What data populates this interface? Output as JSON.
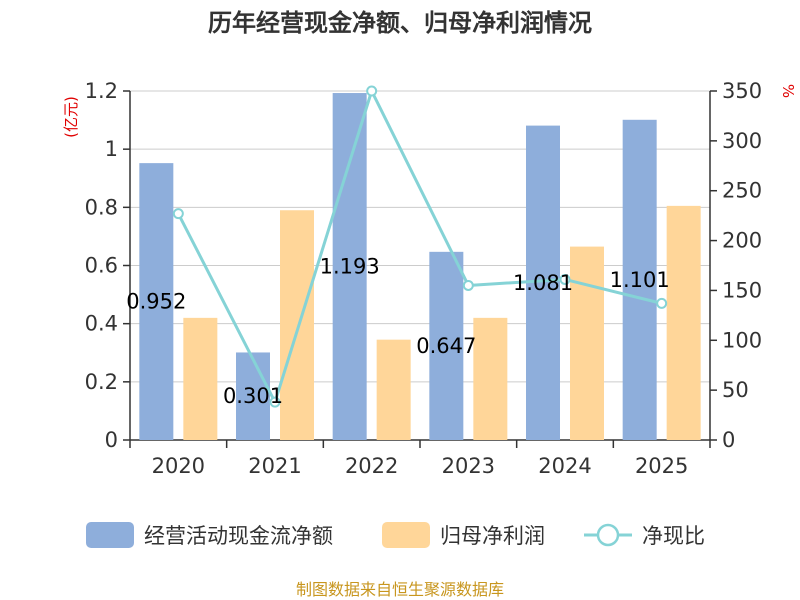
{
  "chart_data": {
    "type": "bar",
    "title": "历年经营现金净额、归母净利润情况",
    "categories": [
      "2020",
      "2021",
      "2022",
      "2023",
      "2024",
      "2025"
    ],
    "series": [
      {
        "name": "经营活动现金流净额",
        "axis": "left",
        "kind": "bar",
        "color": "#8eaedb",
        "values": [
          0.952,
          0.301,
          1.193,
          0.647,
          1.081,
          1.101
        ]
      },
      {
        "name": "归母净利润",
        "axis": "left",
        "kind": "bar",
        "color": "#ffd699",
        "values": [
          0.42,
          0.79,
          0.345,
          0.42,
          0.665,
          0.805
        ]
      },
      {
        "name": "净现比",
        "axis": "right",
        "kind": "line",
        "color": "#85d3d6",
        "values": [
          227,
          38,
          350,
          155,
          161,
          137
        ]
      }
    ],
    "data_labels": [
      "0.952",
      "0.301",
      "1.193",
      "0.647",
      "1.081",
      "1.101"
    ],
    "left_axis": {
      "unit": "(亿元)",
      "min": 0,
      "max": 1.2,
      "ticks": [
        "0",
        "0.2",
        "0.4",
        "0.6",
        "0.8",
        "1",
        "1.2"
      ]
    },
    "right_axis": {
      "unit": "%",
      "min": 0,
      "max": 350,
      "ticks": [
        "0",
        "50",
        "100",
        "150",
        "200",
        "250",
        "300",
        "350"
      ]
    },
    "grid": true,
    "legend_position": "bottom"
  },
  "footer": {
    "source": "制图数据来自恒生聚源数据库"
  }
}
